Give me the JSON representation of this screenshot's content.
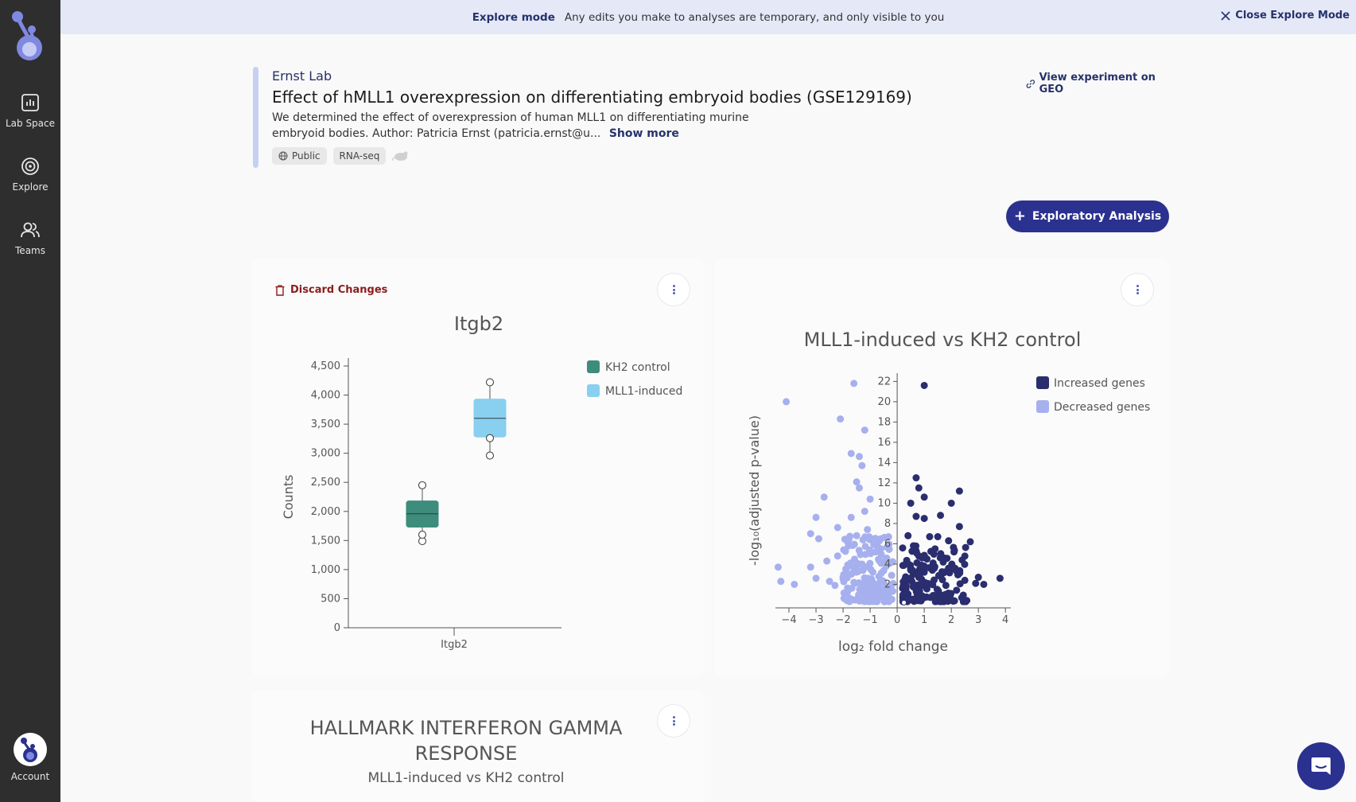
{
  "sidebar": {
    "items": [
      {
        "label": "Lab Space",
        "icon": "lab-space-icon"
      },
      {
        "label": "Explore",
        "icon": "explore-icon"
      },
      {
        "label": "Teams",
        "icon": "teams-icon"
      }
    ],
    "account_label": "Account"
  },
  "banner": {
    "mode": "Explore mode",
    "text": "Any edits you make to analyses are temporary, and only visible to you",
    "close_label": "Close Explore Mode"
  },
  "experiment": {
    "lab": "Ernst Lab",
    "title": "Effect of hMLL1 overexpression on differentiating embryoid bodies (GSE129169)",
    "description": "We determined the effect of overexpression of human MLL1 on differentiating murine embryoid bodies. Author: Patricia Ernst (patricia.ernst@u...",
    "show_more": "Show more",
    "tags": [
      "Public",
      "RNA-seq"
    ],
    "geo_link": "View experiment on GEO"
  },
  "actions": {
    "exploratory_label": "Exploratory Analysis"
  },
  "boxplot_card": {
    "discard_label": "Discard Changes"
  },
  "hallmark_card": {
    "title": "HALLMARK INTERFERON GAMMA RESPONSE",
    "subtitle": "MLL1-induced vs KH2 control"
  },
  "colors": {
    "accent": "#2b318f",
    "kh2": "#3d8c7c",
    "mll1": "#89cff0",
    "increased": "#2a2d6e",
    "decreased": "#a7b0ee"
  },
  "chart_data": [
    {
      "type": "box",
      "title": "Itgb2",
      "ylabel": "Counts",
      "xlabel": "",
      "ylim": [
        0,
        4500
      ],
      "yticks": [
        0,
        500,
        1000,
        1500,
        2000,
        2500,
        3000,
        3500,
        4000,
        4500
      ],
      "ytick_labels": [
        "0",
        "500",
        "1,000",
        "1,500",
        "2,000",
        "2,500",
        "3,000",
        "3,500",
        "4,000",
        "4,500"
      ],
      "categories": [
        "Itgb2"
      ],
      "legend_position": "top-right",
      "series": [
        {
          "name": "KH2 control",
          "color": "#3d8c7c",
          "min": 1490,
          "q1": 1730,
          "median": 1960,
          "q3": 2180,
          "max": 2450,
          "points": [
            1490,
            1600,
            2450
          ]
        },
        {
          "name": "MLL1-induced",
          "color": "#89cff0",
          "min": 2960,
          "q1": 3280,
          "median": 3600,
          "q3": 3930,
          "max": 4220,
          "points": [
            2960,
            3260,
            4220
          ]
        }
      ]
    },
    {
      "type": "scatter",
      "title": "MLL1-induced vs KH2 control",
      "xlabel": "log₂ fold change",
      "ylabel": "-log₁₀(adjusted p-value)",
      "xlim": [
        -4.5,
        4.2
      ],
      "ylim": [
        0,
        22.5
      ],
      "xticks": [
        -4,
        -3,
        -2,
        -1,
        0,
        1,
        2,
        3,
        4
      ],
      "xtick_labels": [
        "−4",
        "−3",
        "−2",
        "−1",
        "0",
        "1",
        "2",
        "3",
        "4"
      ],
      "yticks": [
        2,
        4,
        6,
        8,
        10,
        12,
        14,
        16,
        18,
        20,
        22
      ],
      "legend_position": "top-right",
      "series": [
        {
          "name": "Increased genes",
          "color": "#2a2d6e",
          "points": [
            [
              1.0,
              21.6
            ],
            [
              0.7,
              12.5
            ],
            [
              0.8,
              11.5
            ],
            [
              1.0,
              10.6
            ],
            [
              2.3,
              11.2
            ],
            [
              2.0,
              10.0
            ],
            [
              0.5,
              10.0
            ],
            [
              0.7,
              8.7
            ],
            [
              1.0,
              8.5
            ],
            [
              1.6,
              8.8
            ],
            [
              2.3,
              7.7
            ],
            [
              2.7,
              6.2
            ],
            [
              0.4,
              6.8
            ],
            [
              1.2,
              6.7
            ],
            [
              1.5,
              6.7
            ],
            [
              1.9,
              6.3
            ],
            [
              0.6,
              5.8
            ],
            [
              1.4,
              5.5
            ],
            [
              2.1,
              5.2
            ],
            [
              0.8,
              4.8
            ],
            [
              1.1,
              4.5
            ],
            [
              2.4,
              4.4
            ],
            [
              1.7,
              4.2
            ],
            [
              0.5,
              3.6
            ],
            [
              1.3,
              3.4
            ],
            [
              2.2,
              3.3
            ],
            [
              3.0,
              2.7
            ],
            [
              3.8,
              2.6
            ],
            [
              2.9,
              2.1
            ],
            [
              3.2,
              2.0
            ],
            [
              0.3,
              2.2
            ],
            [
              0.9,
              2.5
            ],
            [
              1.6,
              2.8
            ],
            [
              2.5,
              2.4
            ],
            [
              1.8,
              1.9
            ],
            [
              0.6,
              3.0
            ],
            [
              1.0,
              3.8
            ],
            [
              1.9,
              3.6
            ]
          ]
        },
        {
          "name": "Decreased genes",
          "color": "#a7b0ee",
          "points": [
            [
              -4.1,
              20.0
            ],
            [
              -1.6,
              21.8
            ],
            [
              -2.1,
              18.3
            ],
            [
              -1.2,
              17.2
            ],
            [
              -1.7,
              14.9
            ],
            [
              -1.4,
              14.6
            ],
            [
              -1.3,
              13.7
            ],
            [
              -1.5,
              12.1
            ],
            [
              -1.4,
              11.5
            ],
            [
              -2.7,
              10.6
            ],
            [
              -1.0,
              10.4
            ],
            [
              -1.2,
              9.2
            ],
            [
              -3.0,
              8.6
            ],
            [
              -1.7,
              8.6
            ],
            [
              -2.2,
              7.6
            ],
            [
              -3.2,
              7.0
            ],
            [
              -2.9,
              6.5
            ],
            [
              -1.5,
              6.8
            ],
            [
              -4.4,
              3.7
            ],
            [
              -3.2,
              3.7
            ],
            [
              -2.6,
              4.3
            ],
            [
              -2.2,
              4.8
            ],
            [
              -1.8,
              5.8
            ],
            [
              -4.3,
              2.3
            ],
            [
              -3.8,
              2.0
            ],
            [
              -3.0,
              2.6
            ],
            [
              -2.5,
              2.3
            ],
            [
              -2.0,
              2.7
            ],
            [
              -1.3,
              4.0
            ],
            [
              -0.8,
              5.2
            ],
            [
              -0.6,
              6.5
            ],
            [
              -1.1,
              7.4
            ],
            [
              -0.9,
              3.2
            ],
            [
              -0.5,
              2.2
            ],
            [
              -1.6,
              2.2
            ],
            [
              -2.3,
              1.9
            ],
            [
              -0.7,
              1.8
            ],
            [
              -1.9,
              3.5
            ]
          ]
        }
      ]
    }
  ]
}
